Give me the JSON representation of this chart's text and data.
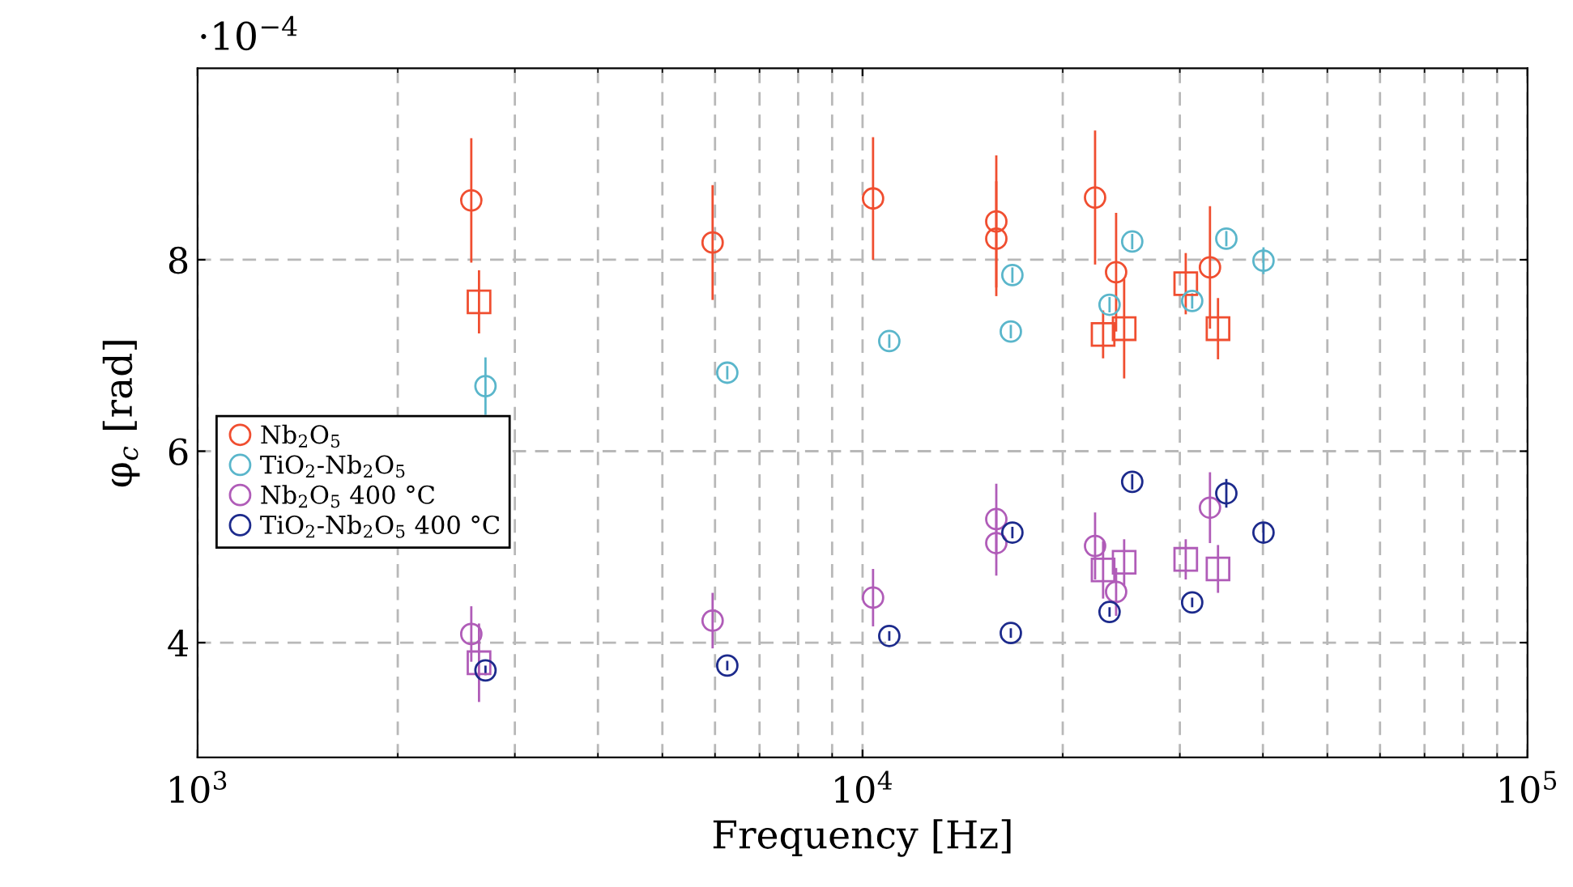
{
  "chart_data": {
    "type": "scatter",
    "xlabel": "Frequency [Hz]",
    "ylabel": "φ$_{c}$ [rad]",
    "annotations": [
      "·10$^{−4}$"
    ],
    "log": "x",
    "grid": true,
    "legend": "left",
    "xlim": [
      1000,
      100000
    ],
    "xticks": [
      {
        "value": 1000,
        "label": "10$^{3}$"
      },
      {
        "value": 10000,
        "label": "10$^{4}$"
      },
      {
        "value": 100000,
        "label": "10$^{5}$"
      }
    ],
    "ylim": [
      2.8,
      10
    ],
    "yticks": [
      4,
      6,
      8
    ],
    "series": [
      {
        "name": "Nb$_{2}$O$_{5}$",
        "color": "#f04e30",
        "marker": "circle",
        "x": [
          2580,
          5950,
          10370,
          15890,
          15890,
          22370,
          24060,
          33300
        ],
        "values": [
          8.62,
          8.18,
          8.64,
          8.4,
          8.22,
          8.65,
          7.87,
          7.92
        ],
        "errors": [
          0.65,
          0.6,
          0.64,
          0.69,
          0.6,
          0.7,
          0.62,
          0.64
        ]
      },
      {
        "color": "#f04e30",
        "marker": "square",
        "x": [
          2650,
          23000,
          24740,
          30620,
          34240
        ],
        "values": [
          7.56,
          7.22,
          7.28,
          7.75,
          7.28
        ],
        "errors": [
          0.33,
          0.25,
          0.52,
          0.32,
          0.32
        ]
      },
      {
        "name": "TiO$_{2}$-Nb$_{2}$O$_{5}$",
        "color": "#5ab6cb",
        "marker": "circle",
        "x": [
          2710,
          6260,
          10970,
          16800,
          16710,
          23520,
          25440,
          31310,
          35240,
          40080
        ],
        "values": [
          6.68,
          6.82,
          7.15,
          7.84,
          7.25,
          7.53,
          8.19,
          7.57,
          8.22,
          7.99
        ],
        "errors": [
          0.3,
          0.07,
          0.07,
          0.08,
          0.07,
          0.08,
          0.08,
          0.08,
          0.08,
          0.14
        ]
      },
      {
        "name": "Nb$_{2}$O$_{5}$ 400 °C",
        "color": "#b05cb8",
        "marker": "circle",
        "x": [
          2580,
          5950,
          10370,
          15890,
          15890,
          22370,
          24060,
          33300
        ],
        "values": [
          4.09,
          4.23,
          4.47,
          5.29,
          5.04,
          5.01,
          4.53,
          5.41
        ],
        "errors": [
          0.29,
          0.29,
          0.3,
          0.37,
          0.34,
          0.35,
          0.25,
          0.37
        ]
      },
      {
        "color": "#b05cb8",
        "marker": "square",
        "x": [
          2650,
          23000,
          24740,
          30620,
          34240
        ],
        "values": [
          3.79,
          4.76,
          4.84,
          4.87,
          4.77
        ],
        "errors": [
          0.41,
          0.3,
          0.24,
          0.21,
          0.25
        ]
      },
      {
        "name": "TiO$_{2}$-Nb$_{2}$O$_{5}$ 400 °C",
        "color": "#1c2a8c",
        "marker": "circle",
        "x": [
          2710,
          6260,
          10970,
          16800,
          16710,
          23520,
          25440,
          31310,
          35240,
          40080
        ],
        "values": [
          3.71,
          3.76,
          4.07,
          5.15,
          4.1,
          4.32,
          5.68,
          4.42,
          5.56,
          5.15
        ],
        "errors": [
          0.05,
          0.05,
          0.05,
          0.06,
          0.05,
          0.05,
          0.08,
          0.05,
          0.15,
          0.1
        ]
      }
    ]
  }
}
